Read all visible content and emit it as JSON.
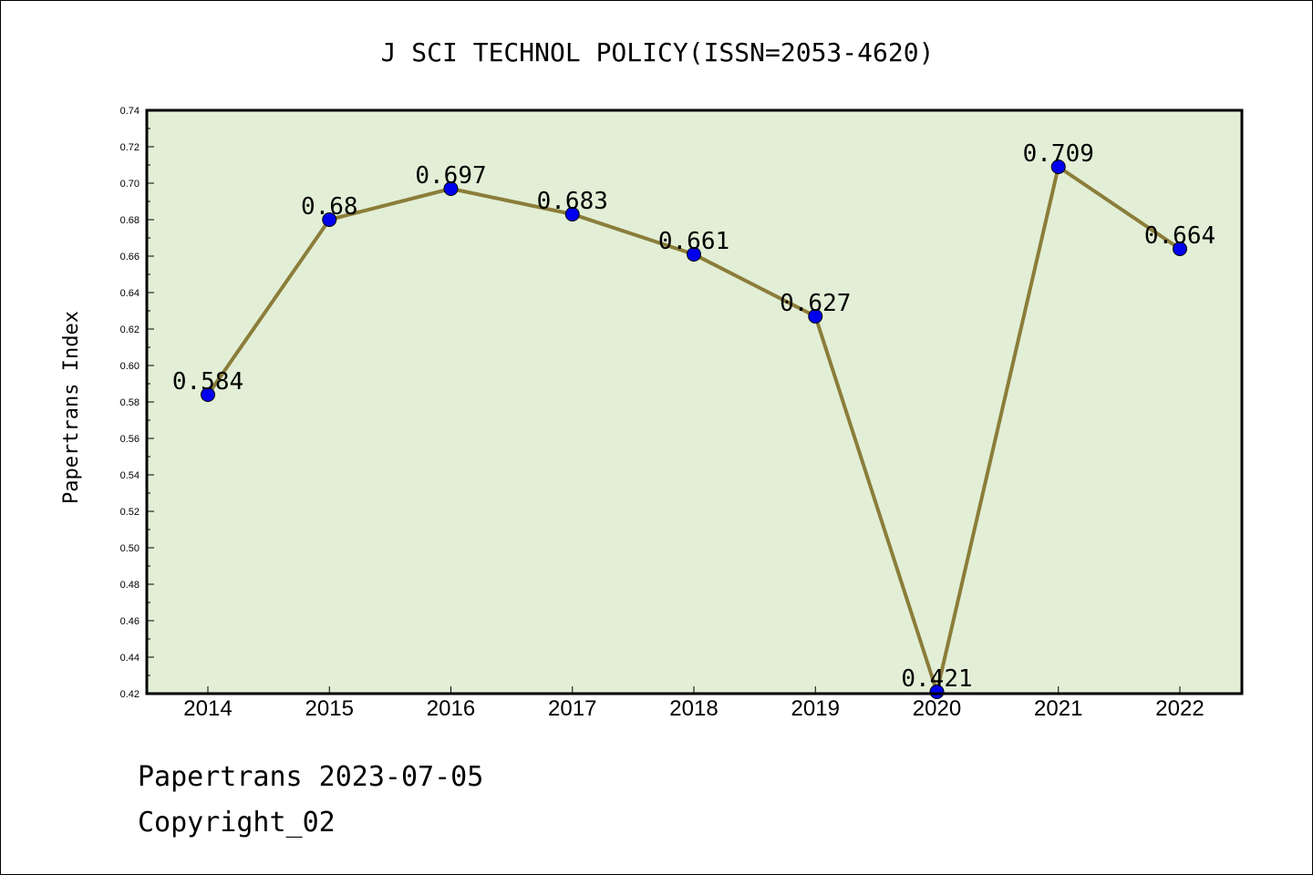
{
  "chart_data": {
    "type": "line",
    "title": "J SCI TECHNOL POLICY(ISSN=2053-4620)",
    "xlabel": "",
    "ylabel": "Papertrans Index",
    "categories": [
      "2014",
      "2015",
      "2016",
      "2017",
      "2018",
      "2019",
      "2020",
      "2021",
      "2022"
    ],
    "values": [
      0.584,
      0.68,
      0.697,
      0.683,
      0.661,
      0.627,
      0.421,
      0.709,
      0.664
    ],
    "data_labels": [
      "0.584",
      "0.68",
      "0.697",
      "0.683",
      "0.661",
      "0.627",
      "0.421",
      "0.709",
      "0.664"
    ],
    "ylim": [
      0.42,
      0.74
    ],
    "yticks": [
      "0.42",
      "0.44",
      "0.46",
      "0.48",
      "0.50",
      "0.52",
      "0.54",
      "0.56",
      "0.58",
      "0.60",
      "0.62",
      "0.64",
      "0.66",
      "0.68",
      "0.70",
      "0.72",
      "0.74"
    ],
    "grid": false,
    "legend": "none",
    "colors": {
      "plot_background": "#e2efd6",
      "line": "#8b7d3a",
      "marker": "#0000ee"
    }
  },
  "footer": {
    "line1": "Papertrans 2023-07-05",
    "line2": "Copyright_02"
  }
}
